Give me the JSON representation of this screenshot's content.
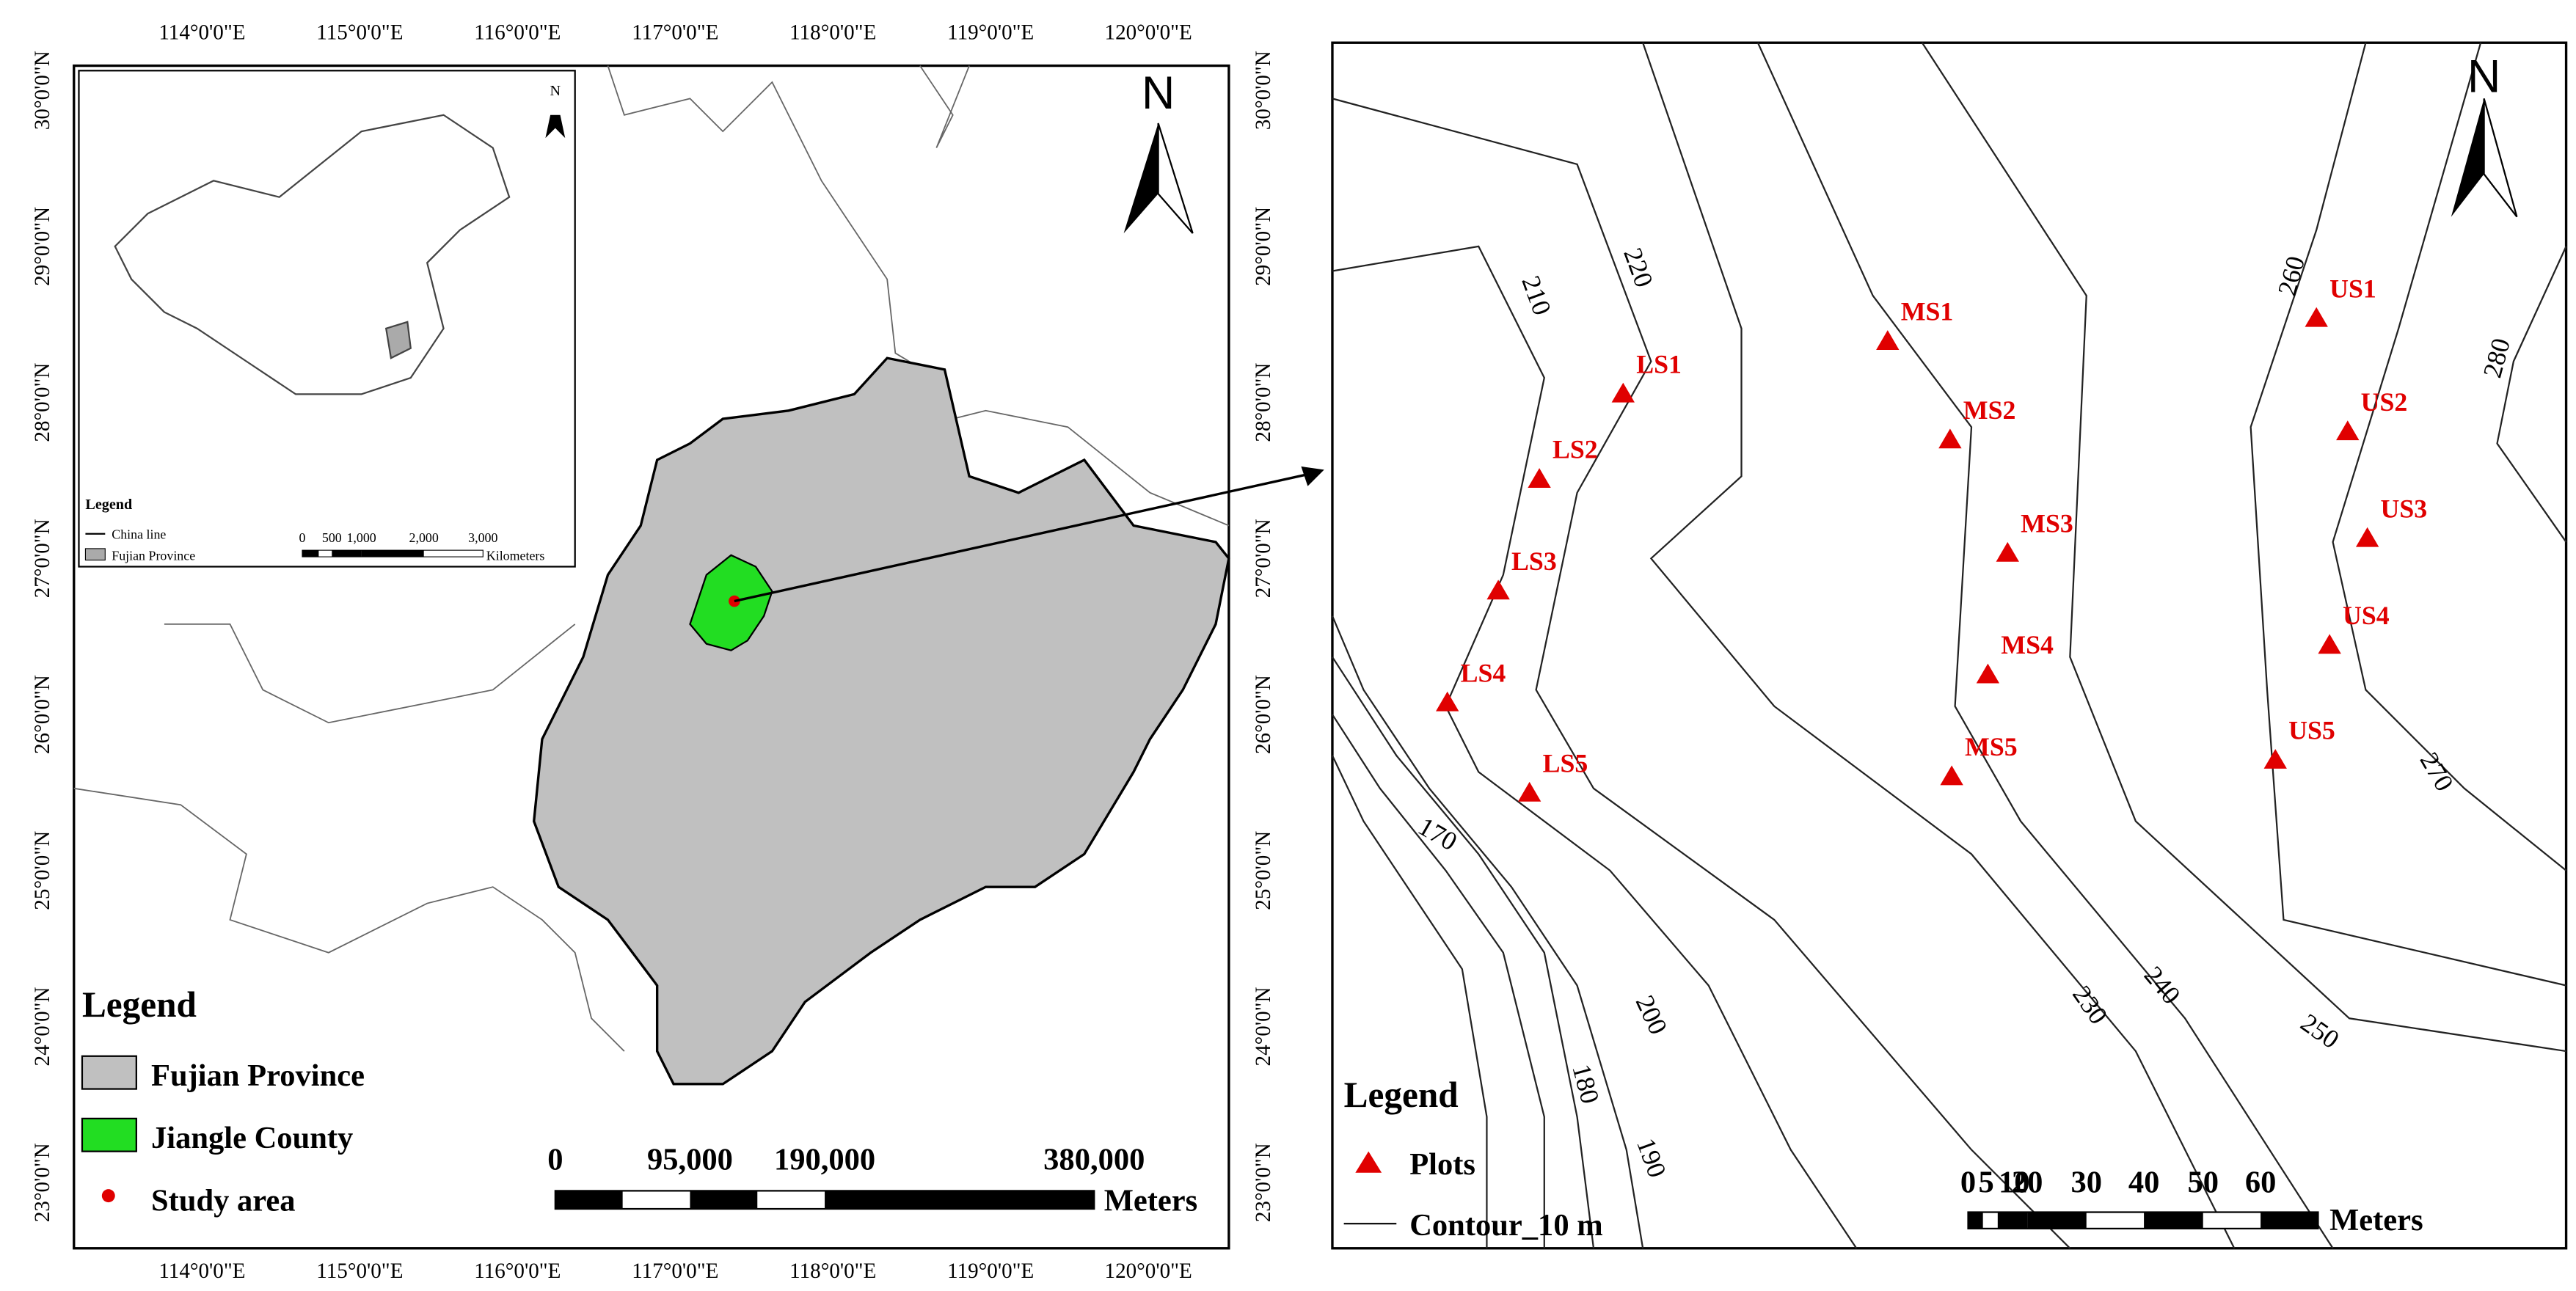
{
  "left_map": {
    "north": "N",
    "lon_labels": [
      "114°0'0\"E",
      "115°0'0\"E",
      "116°0'0\"E",
      "117°0'0\"E",
      "118°0'0\"E",
      "119°0'0\"E",
      "120°0'0\"E"
    ],
    "lat_labels": [
      "30°0'0\"N",
      "29°0'0\"N",
      "28°0'0\"N",
      "27°0'0\"N",
      "26°0'0\"N",
      "25°0'0\"N",
      "24°0'0\"N",
      "23°0'0\"N"
    ],
    "inset": {
      "north": "N",
      "legend_title": "Legend",
      "legend_items": [
        "China line",
        "Fujian Province"
      ],
      "scale_labels": [
        "0",
        "500",
        "1,000",
        "2,000",
        "3,000"
      ],
      "scale_unit": "Kilometers"
    },
    "legend": {
      "title": "Legend",
      "items": [
        "Fujian Province",
        "Jiangle County",
        "Study area"
      ]
    },
    "scale": {
      "labels": [
        "0",
        "95,000",
        "190,000",
        "380,000"
      ],
      "unit": "Meters"
    }
  },
  "right_map": {
    "north": "N",
    "contours": [
      "170",
      "180",
      "190",
      "200",
      "210",
      "220",
      "230",
      "240",
      "250",
      "260",
      "270",
      "280"
    ],
    "plots": [
      "LS1",
      "LS2",
      "LS3",
      "LS4",
      "LS5",
      "MS1",
      "MS2",
      "MS3",
      "MS4",
      "MS5",
      "US1",
      "US2",
      "US3",
      "US4",
      "US5"
    ],
    "legend": {
      "title": "Legend",
      "items": [
        "Plots",
        "Contour_10 m"
      ]
    },
    "scale": {
      "labels": [
        "0",
        "5",
        "10",
        "20",
        "30",
        "40",
        "50",
        "60"
      ],
      "unit": "Meters"
    }
  }
}
